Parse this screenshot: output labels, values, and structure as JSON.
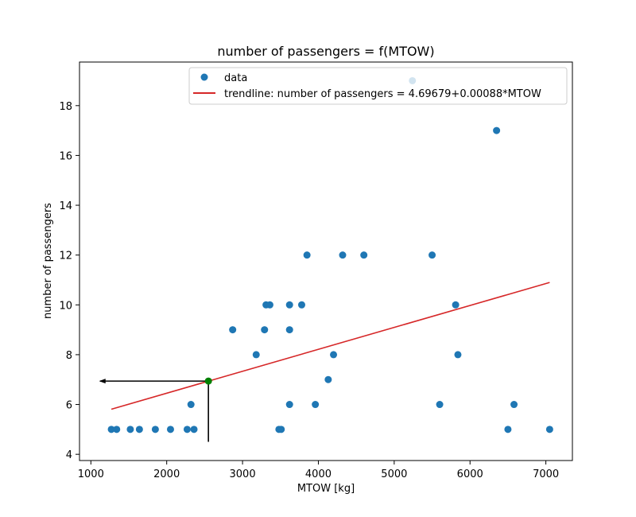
{
  "chart_data": {
    "type": "scatter",
    "title": "number of passengers = f(MTOW)",
    "xlabel": "MTOW [kg]",
    "ylabel": "number of passengers",
    "xlim": [
      850,
      7350
    ],
    "ylim": [
      3.75,
      19.75
    ],
    "xticks": [
      1000,
      2000,
      3000,
      4000,
      5000,
      6000,
      7000
    ],
    "yticks": [
      4,
      6,
      8,
      10,
      12,
      14,
      16,
      18
    ],
    "grid": false,
    "legend_position": "top-right",
    "colors": {
      "data": "#1f77b4",
      "trendline": "#d62728",
      "marker": "#008000",
      "arrow": "#000000"
    },
    "series": [
      {
        "name": "data",
        "type": "scatter",
        "points": [
          [
            1270,
            5
          ],
          [
            1340,
            5
          ],
          [
            1520,
            5
          ],
          [
            1640,
            5
          ],
          [
            1850,
            5
          ],
          [
            2050,
            5
          ],
          [
            2270,
            5
          ],
          [
            2360,
            5
          ],
          [
            2320,
            6
          ],
          [
            2870,
            9
          ],
          [
            3180,
            8
          ],
          [
            3290,
            9
          ],
          [
            3310,
            10
          ],
          [
            3360,
            10
          ],
          [
            3480,
            5
          ],
          [
            3510,
            5
          ],
          [
            3620,
            6
          ],
          [
            3620,
            9
          ],
          [
            3620,
            10
          ],
          [
            3780,
            10
          ],
          [
            3850,
            12
          ],
          [
            3960,
            6
          ],
          [
            4130,
            7
          ],
          [
            4200,
            8
          ],
          [
            4320,
            12
          ],
          [
            4600,
            12
          ],
          [
            5240,
            19
          ],
          [
            5500,
            12
          ],
          [
            5600,
            6
          ],
          [
            5810,
            10
          ],
          [
            5840,
            8
          ],
          [
            6350,
            17
          ],
          [
            6500,
            5
          ],
          [
            6580,
            6
          ],
          [
            7050,
            5
          ]
        ]
      },
      {
        "name": "trendline: number of passengers = 4.69679+0.00088*MTOW",
        "type": "line",
        "x": [
          1270,
          7050
        ],
        "y": [
          5.81,
          10.9
        ]
      }
    ],
    "highlight": {
      "point": [
        2550,
        6.94
      ],
      "vertical_from_y": 4.5,
      "horizontal_to_x": 1120
    }
  }
}
